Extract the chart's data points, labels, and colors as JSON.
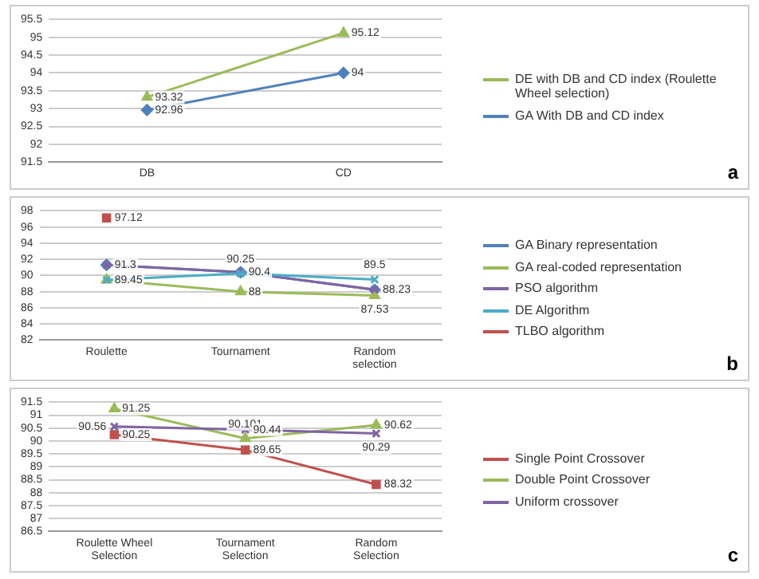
{
  "chart_data": [
    {
      "type": "line",
      "categories": [
        "DB",
        "CD"
      ],
      "ylim": [
        91.5,
        95.5
      ],
      "yticks": [
        91.5,
        92,
        92.5,
        93,
        93.5,
        94,
        94.5,
        95,
        95.5
      ],
      "grid": "y",
      "legend": "right",
      "data_labels": true,
      "annotations": [
        "a"
      ],
      "series": [
        {
          "name": "DE with DB and CD index (Roulette Wheel selection)",
          "color": "#9bbb59",
          "marker": "triangle",
          "values": [
            93.32,
            95.12
          ]
        },
        {
          "name": "GA  With DB and CD index",
          "color": "#4f81bd",
          "marker": "diamond",
          "values": [
            92.96,
            94
          ]
        }
      ]
    },
    {
      "type": "line",
      "categories": [
        "Roulette",
        "Tournament",
        "Random selection"
      ],
      "ylim": [
        82,
        98
      ],
      "yticks": [
        82,
        84,
        86,
        88,
        90,
        92,
        94,
        96,
        98
      ],
      "grid": "y",
      "legend": "right",
      "annotations": [
        "b"
      ],
      "series": [
        {
          "name": "GA Binary representation",
          "color": "#4f81bd",
          "marker": "diamond",
          "values": [
            91.3,
            90.4,
            88.23
          ],
          "value_labels": [
            "91.3",
            "90.4",
            "88.23"
          ]
        },
        {
          "name": "GA real-coded representation",
          "color": "#9bbb59",
          "marker": "triangle",
          "values": [
            89.45,
            88,
            87.53
          ],
          "value_labels": [
            "89.45",
            "88",
            "87.53"
          ]
        },
        {
          "name": "PSO algorithm",
          "color": "#8064a2",
          "marker": "cross",
          "values": [
            91.3,
            90.4,
            88.23
          ],
          "value_labels": [
            null,
            null,
            null
          ]
        },
        {
          "name": "DE Algorithm",
          "color": "#4bacc6",
          "marker": "cross",
          "values": [
            89.45,
            90.25,
            89.5
          ],
          "value_labels": [
            null,
            "90.25",
            "89.5"
          ]
        },
        {
          "name": "TLBO algorithm",
          "color": "#c0504d",
          "marker": "square",
          "values": [
            97.12,
            null,
            null
          ],
          "value_labels": [
            "97.12",
            null,
            null
          ]
        }
      ]
    },
    {
      "type": "line",
      "categories": [
        "Roulette Wheel Selection",
        "Tournament Selection",
        "Random Selection"
      ],
      "ylim": [
        86.5,
        91.5
      ],
      "yticks": [
        86.5,
        87,
        87.5,
        88,
        88.5,
        89,
        89.5,
        90,
        90.5,
        91,
        91.5
      ],
      "grid": "y",
      "legend": "right",
      "data_labels": true,
      "annotations": [
        "c"
      ],
      "series": [
        {
          "name": "Single Point Crossover",
          "color": "#c0504d",
          "marker": "square",
          "values": [
            90.25,
            89.65,
            88.32
          ]
        },
        {
          "name": "Double Point Crossover",
          "color": "#9bbb59",
          "marker": "triangle",
          "values": [
            91.25,
            90.101,
            90.62
          ]
        },
        {
          "name": "Uniform crossover",
          "color": "#8064a2",
          "marker": "cross",
          "values": [
            90.56,
            90.44,
            90.29
          ]
        }
      ]
    }
  ]
}
